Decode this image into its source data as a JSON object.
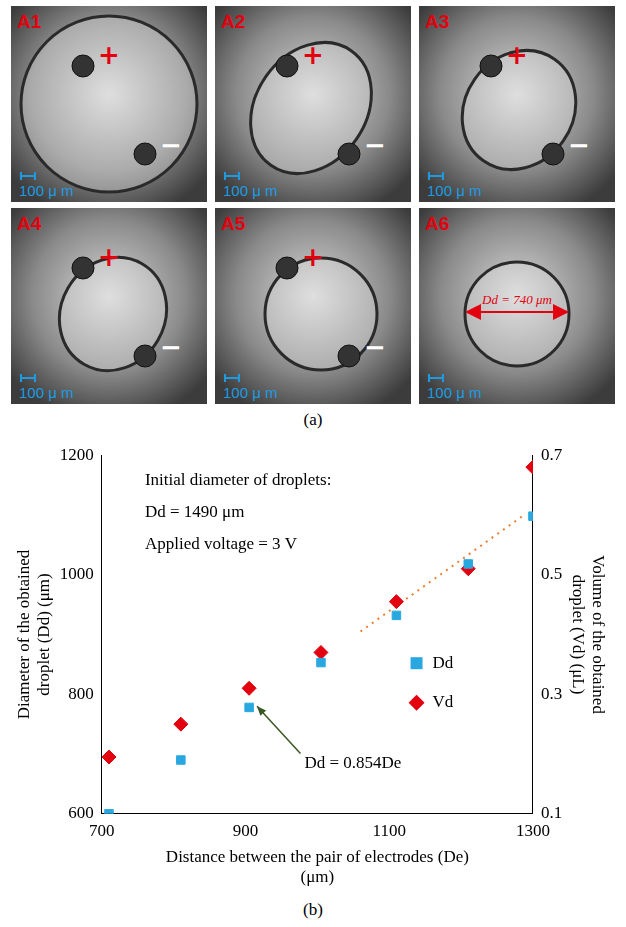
{
  "figure": {
    "panel_a": {
      "caption": "(a)",
      "images": [
        {
          "label": "A1",
          "electrodes": [
            "+",
            "−"
          ],
          "scale_bar": "100 μ m"
        },
        {
          "label": "A2",
          "electrodes": [
            "+",
            "−"
          ],
          "scale_bar": "100 μ m"
        },
        {
          "label": "A3",
          "electrodes": [
            "+",
            "−"
          ],
          "scale_bar": "100 μ m"
        },
        {
          "label": "A4",
          "electrodes": [
            "+",
            "−"
          ],
          "scale_bar": "100 μ m"
        },
        {
          "label": "A5",
          "electrodes": [
            "+",
            "−"
          ],
          "scale_bar": "100 μ m"
        },
        {
          "label": "A6",
          "scale_bar": "100 μ m",
          "annotation": "Dd = 740 μm"
        }
      ]
    },
    "panel_b": {
      "caption": "(b)"
    }
  },
  "chart_data": {
    "type": "scatter",
    "x_label": "Distance between the pair of electrodes (De) (μm)",
    "y_label": "Diameter of the obtained droplet (Dd) (μm)",
    "y2_label": "Volume of the obtained droplet (Vd) (μL)",
    "annotations": [
      "Initial diameter of droplets:",
      "Dd = 1490 μm",
      "Applied voltage = 3 V"
    ],
    "xlim": [
      700,
      1300
    ],
    "xticks": [
      700,
      900,
      1100,
      1300
    ],
    "ylim": [
      600,
      1200
    ],
    "yticks": [
      600,
      800,
      1000,
      1200
    ],
    "y2lim": [
      0.1,
      0.7
    ],
    "y2ticks": [
      0.1,
      0.3,
      0.5,
      0.7
    ],
    "grid": false,
    "legend": "right",
    "series": [
      {
        "name": "Dd",
        "color": "#29a8e0",
        "marker": "square",
        "x": [
          710,
          810,
          905,
          1005,
          1110,
          1210,
          1300
        ],
        "values": [
          600,
          690,
          778,
          853,
          932,
          1018,
          1098
        ]
      },
      {
        "name": "Vd",
        "color": "#e3000f",
        "marker": "diamond",
        "axis": "y2",
        "x": [
          710,
          810,
          905,
          1005,
          1110,
          1210,
          1300
        ],
        "values": [
          0.195,
          0.25,
          0.31,
          0.37,
          0.455,
          0.51,
          0.68
        ]
      }
    ],
    "trendline": {
      "label": "Dd = 0.854De",
      "color": "#ed7d31",
      "line_style": "dotted",
      "x": [
        1060,
        1290
      ],
      "values": [
        905,
        1102
      ]
    }
  }
}
